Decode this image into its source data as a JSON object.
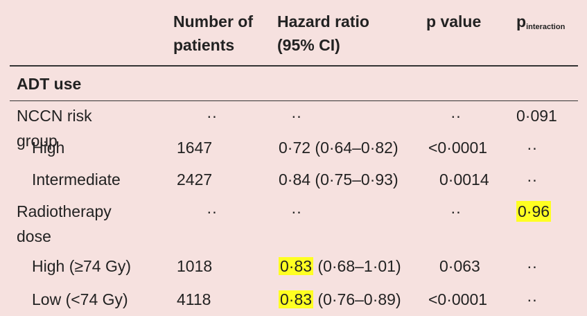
{
  "table": {
    "header": [
      "Number of patients",
      "Hazard ratio (95% CI)",
      "p value",
      {
        "p": "p",
        "sub": "interaction"
      }
    ],
    "section": "ADT use",
    "rows": [
      {
        "label": "NCCN risk group",
        "n": "··",
        "hr": "··",
        "ci": "",
        "p": "··",
        "pint": "0·091"
      },
      {
        "label": "High",
        "n": "1647",
        "hr": "0·72",
        "ci": "(0·64–0·82)",
        "p": "<0·0001",
        "pint": "··"
      },
      {
        "label": "Intermediate",
        "n": "2427",
        "hr": "0·84",
        "ci": "(0·75–0·93)",
        "p": "0·0014",
        "pint": "··"
      },
      {
        "label": "Radiotherapy dose",
        "n": "··",
        "hr": "··",
        "ci": "",
        "p": "··",
        "pint": "0·96"
      },
      {
        "label": "High (≥74 Gy)",
        "n": "1018",
        "hr": "0·83",
        "ci": "(0·68–1·01)",
        "p": "0·063",
        "pint": "··"
      },
      {
        "label": "Low (<74 Gy)",
        "n": "4118",
        "hr": "0·83",
        "ci": "(0·76–0·89)",
        "p": "<0·0001",
        "pint": "··"
      }
    ]
  }
}
